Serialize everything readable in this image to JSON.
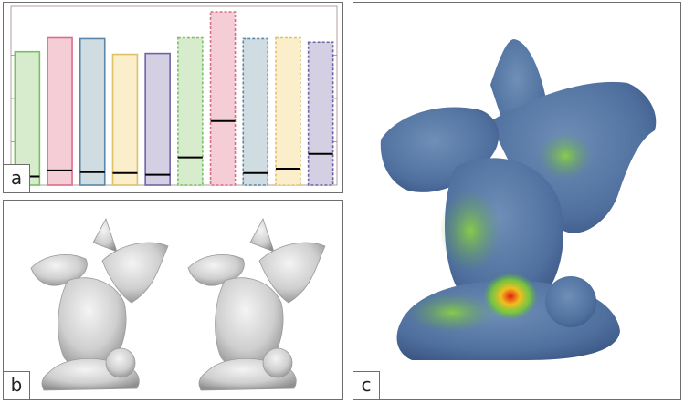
{
  "panels": {
    "a": {
      "label": "a"
    },
    "b": {
      "label": "b"
    },
    "c": {
      "label": "c"
    }
  },
  "chart_data": {
    "type": "bar",
    "title": "",
    "xlabel": "",
    "ylabel": "",
    "ylim": [
      0,
      1
    ],
    "grid": false,
    "categories": [
      "",
      "",
      "",
      "",
      "",
      "",
      "",
      "",
      "",
      ""
    ],
    "series": [
      {
        "values": [
          0.77,
          0.85,
          0.845,
          0.755,
          0.76,
          0.85,
          1.0,
          0.845,
          0.85,
          0.825
        ]
      },
      {
        "values": [
          0.05,
          0.085,
          0.075,
          0.07,
          0.06,
          0.16,
          0.37,
          0.07,
          0.095,
          0.18
        ]
      }
    ],
    "bar_colors": {
      "fill": [
        "#d7eccd",
        "#f5cdd6",
        "#cfdce2",
        "#faeecb",
        "#d4cfe3",
        "#d7eccd",
        "#f5cdd6",
        "#cfdce2",
        "#faeecb",
        "#d4cfe3"
      ],
      "stroke": [
        "#79c064",
        "#d86f8a",
        "#5c87a6",
        "#dfc268",
        "#6f64a3",
        "#79c064",
        "#d86f8a",
        "#5c87a6",
        "#dfc268",
        "#6f64a3"
      ],
      "dashed": [
        false,
        false,
        false,
        false,
        false,
        true,
        true,
        true,
        true,
        true
      ]
    },
    "marker_color": "#000000"
  }
}
